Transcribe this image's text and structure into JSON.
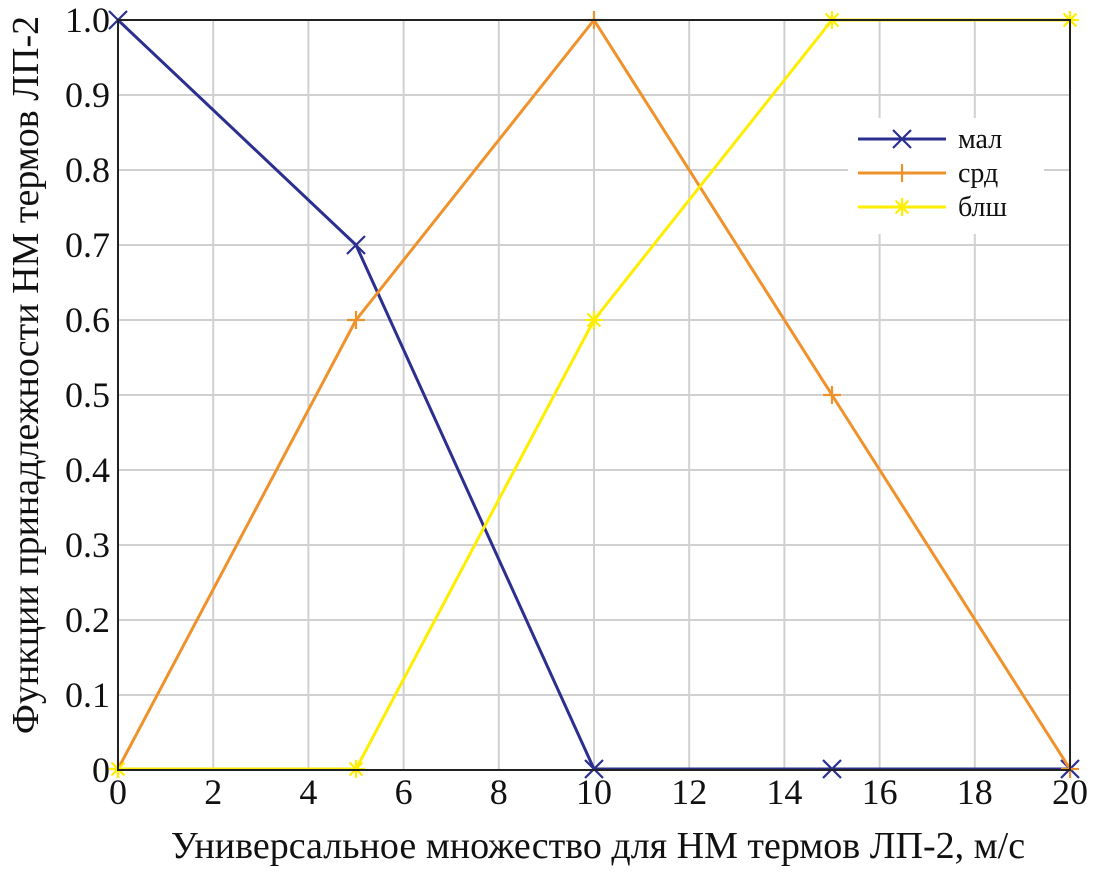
{
  "chart_data": {
    "type": "line",
    "title": "",
    "xlabel": "Универсальное множество для НМ термов ЛП-2, м/с",
    "ylabel": "Функции принадлежности НМ термов ЛП-2",
    "xlim": [
      0,
      20
    ],
    "ylim": [
      0,
      1
    ],
    "x_ticks": [
      0,
      2,
      4,
      6,
      8,
      10,
      12,
      14,
      16,
      18,
      20
    ],
    "x_tick_labels": [
      "0",
      "2",
      "4",
      "6",
      "8",
      "10",
      "12",
      "14",
      "16",
      "18",
      "20"
    ],
    "y_ticks": [
      0,
      0.1,
      0.2,
      0.3,
      0.4,
      0.5,
      0.6,
      0.7,
      0.8,
      0.9,
      1.0
    ],
    "y_tick_labels": [
      "0",
      "0.1",
      "0.2",
      "0.3",
      "0.4",
      "0.5",
      "0.6",
      "0.7",
      "0.8",
      "0.9",
      "1.0"
    ],
    "grid": true,
    "legend_position": "top-right",
    "series": [
      {
        "name": "мал",
        "color": "#2b2f8f",
        "marker": "x",
        "x": [
          0,
          5,
          10,
          15,
          20
        ],
        "y": [
          1.0,
          0.7,
          0,
          0,
          0
        ]
      },
      {
        "name": "срд",
        "color": "#f0922b",
        "marker": "+",
        "x": [
          0,
          5,
          10,
          15,
          20
        ],
        "y": [
          0,
          0.6,
          1.0,
          0.5,
          0
        ]
      },
      {
        "name": "блш",
        "color": "#ffee00",
        "marker": "*",
        "x": [
          0,
          5,
          10,
          15,
          20
        ],
        "y": [
          0,
          0,
          0.6,
          1.0,
          1.0
        ]
      }
    ]
  }
}
